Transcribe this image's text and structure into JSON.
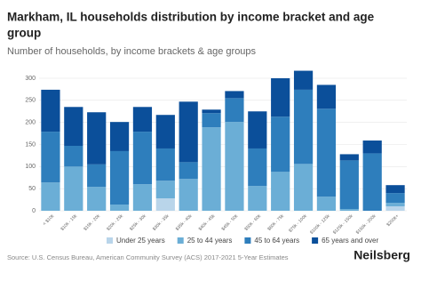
{
  "chart_data": {
    "type": "stacked_bar",
    "title_line1": "Markham, IL households distribution by income bracket and age",
    "title_line2": "group",
    "subtitle": "Number of households, by income brackets & age groups",
    "source": "Source: U.S. Census Bureau, American Community Survey (ACS) 2017-2021 5-Year Estimates",
    "brand": "Neilsberg",
    "categories": [
      "< $10k",
      "$10k - 15k",
      "$15k - 20k",
      "$20k - 25k",
      "$25k - 30k",
      "$30k - 35k",
      "$35k - 40k",
      "$40k - 45k",
      "$45k - 50k",
      "$50k - 60k",
      "$60k - 75k",
      "$75k - 100k",
      "$100k - 125k",
      "$125k - 150k",
      "$150k - 200k",
      "$200k+"
    ],
    "series": [
      {
        "name": "Under 25 years",
        "color": "#b9d5ea",
        "values": [
          0,
          0,
          0,
          0,
          0,
          28,
          0,
          0,
          0,
          0,
          0,
          0,
          0,
          0,
          0,
          10
        ]
      },
      {
        "name": "25 to 44 years",
        "color": "#6baed6",
        "values": [
          64,
          100,
          54,
          14,
          60,
          40,
          72,
          189,
          201,
          56,
          88,
          106,
          32,
          4,
          0,
          8
        ]
      },
      {
        "name": "45 to 64 years",
        "color": "#2e7ebc",
        "values": [
          115,
          47,
          51,
          121,
          119,
          73,
          38,
          32,
          54,
          85,
          125,
          168,
          199,
          110,
          130,
          22
        ]
      },
      {
        "name": "65 years and over",
        "color": "#0b4f9a",
        "values": [
          95,
          88,
          118,
          66,
          56,
          76,
          137,
          8,
          16,
          84,
          87,
          43,
          54,
          14,
          29,
          18
        ]
      }
    ],
    "ylim": [
      0,
      300
    ],
    "yticks": [
      0,
      50,
      100,
      150,
      200,
      250,
      300
    ],
    "grid": true
  }
}
